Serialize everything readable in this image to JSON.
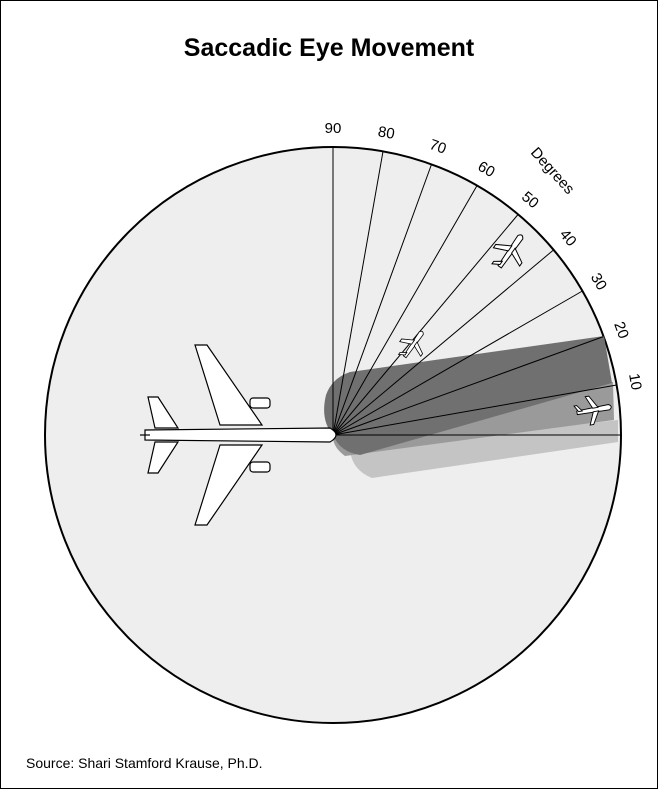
{
  "title": "Saccadic Eye Movement",
  "angles": [
    10,
    20,
    30,
    40,
    50,
    60,
    70,
    80,
    90
  ],
  "axis_label": "Degrees",
  "source": "Source: Shari Stamford Krause, Ph.D."
}
